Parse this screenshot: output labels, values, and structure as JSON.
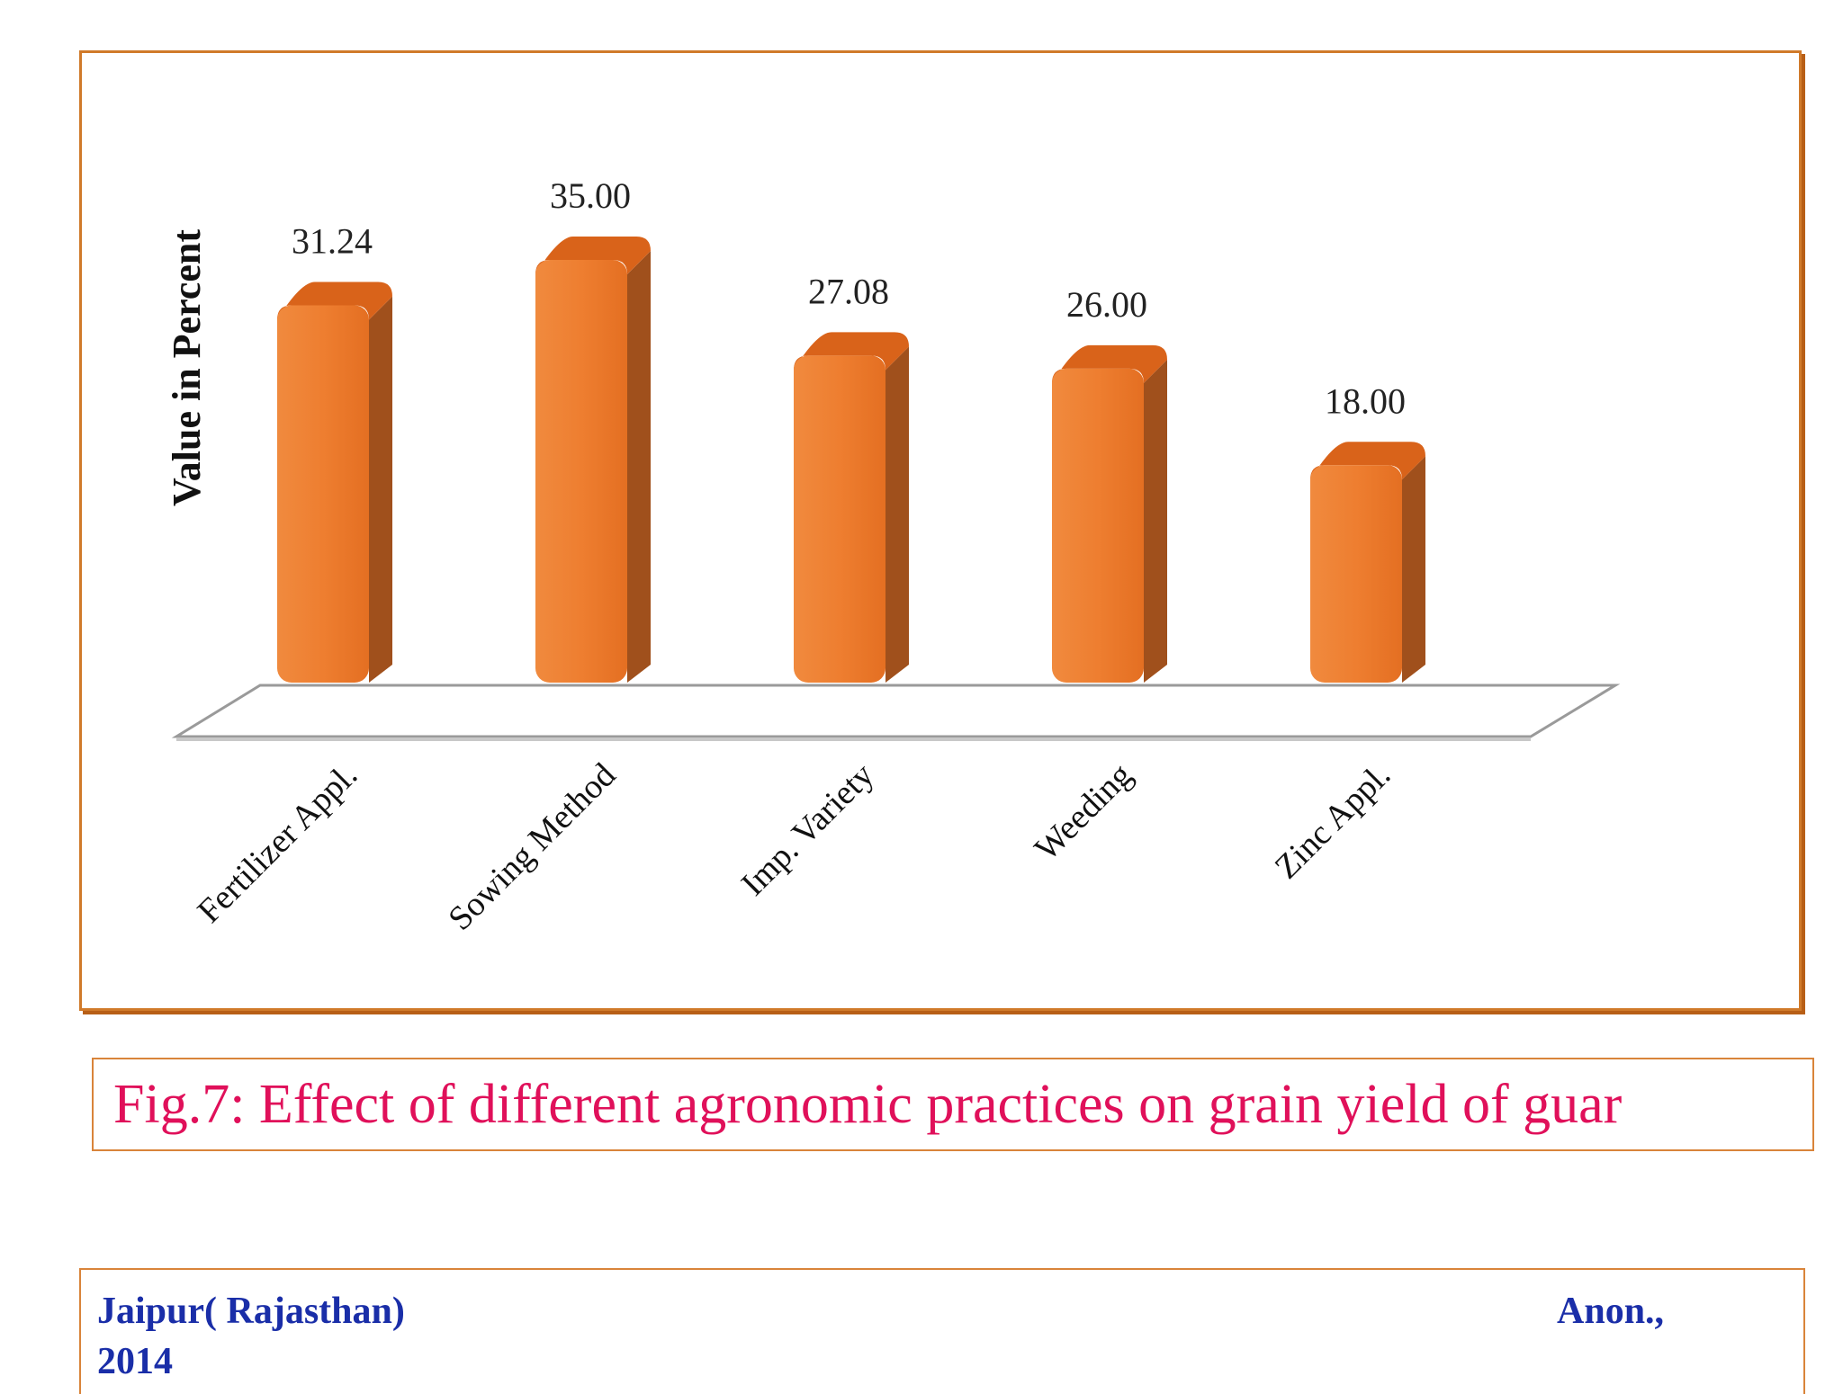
{
  "chart_data": {
    "type": "bar",
    "title": "",
    "xlabel": "",
    "ylabel": "Value in Percent",
    "categories": [
      "Fertilizer Appl.",
      "Sowing Method",
      "Imp. Variety",
      "Weeding",
      "Zinc Appl."
    ],
    "values": [
      31.24,
      35.0,
      27.08,
      26.0,
      18.0
    ],
    "value_labels": [
      "31.24",
      "35.00",
      "27.08",
      "26.00",
      "18.00"
    ],
    "ylim": [
      0,
      35
    ],
    "grid": false,
    "legend": "none",
    "bar_color": "#ee7e30",
    "bar_side_color": "#a0501c",
    "bar_top_color": "#d9631a"
  },
  "caption": "Fig.7: Effect of different agronomic practices on grain yield of guar",
  "footer": {
    "location": "Jaipur( Rajasthan)",
    "author": "Anon.,",
    "year": "2014"
  }
}
